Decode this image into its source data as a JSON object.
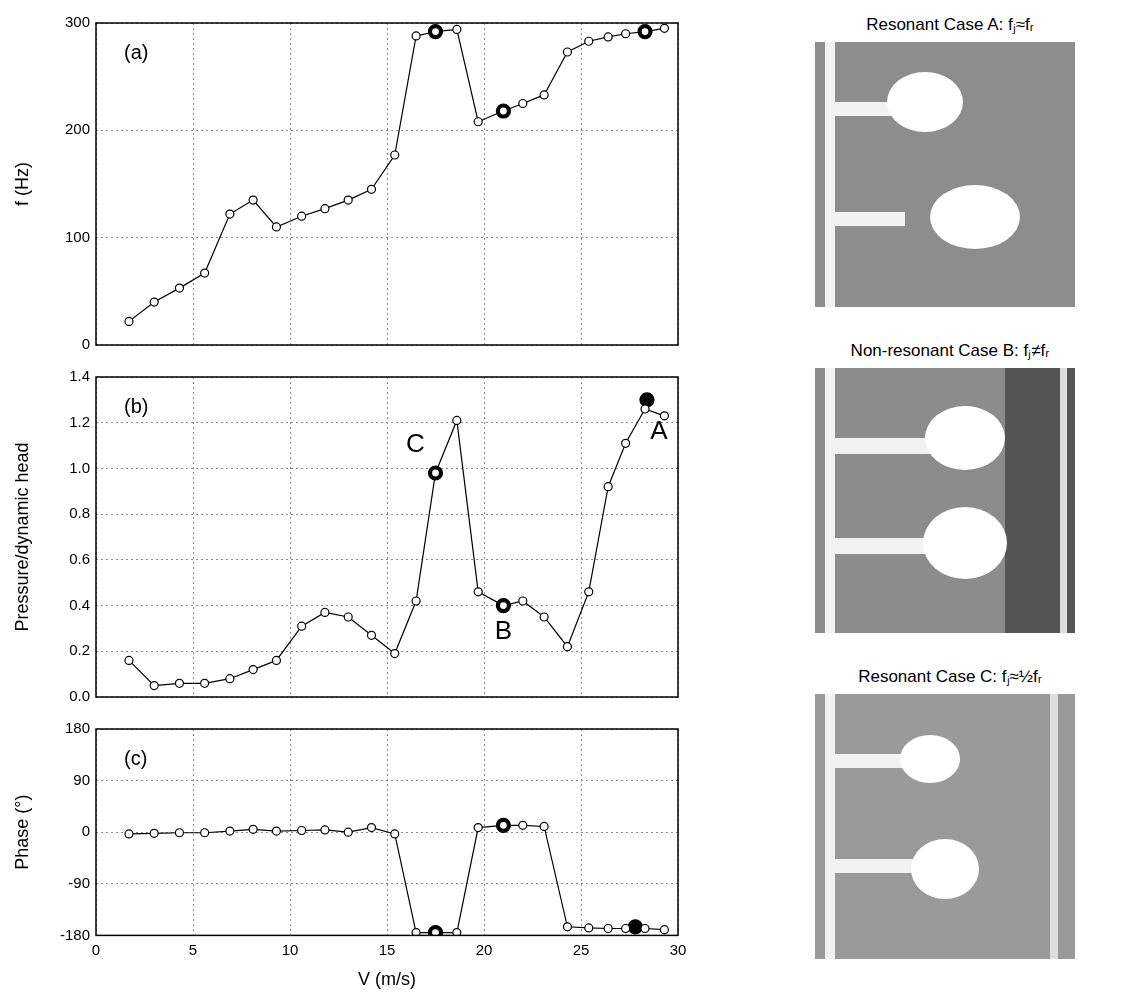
{
  "chart_data": [
    {
      "type": "line",
      "title": "(a)",
      "y_label": "f (Hz)",
      "xlim": [
        0,
        30
      ],
      "xticks": [
        0,
        5,
        10,
        15,
        20,
        25,
        30
      ],
      "ylim": [
        0,
        300
      ],
      "yticks": [
        0,
        100,
        200,
        300
      ],
      "grid": true,
      "tick_labels": "y",
      "series": [
        {
          "color": "#000000",
          "marker": "open_circle",
          "line_style": "solid",
          "x": [
            1.7,
            3.0,
            4.3,
            5.6,
            6.9,
            8.1,
            9.3,
            10.6,
            11.8,
            13.0,
            14.2,
            15.4,
            16.5,
            17.5,
            18.6,
            19.7,
            21.0,
            22.0,
            23.1,
            24.3,
            25.4,
            26.4,
            27.3,
            28.3,
            29.3
          ],
          "values": [
            22,
            40,
            53,
            67,
            122,
            135,
            110,
            120,
            127,
            135,
            145,
            177,
            288,
            292,
            294,
            208,
            218,
            225,
            233,
            273,
            283,
            287,
            290,
            292,
            295
          ]
        },
        {
          "color": "#000000",
          "marker": "filled_circle",
          "line_style": "none",
          "x": [
            17.5,
            21.0,
            28.3
          ],
          "values": [
            292,
            218,
            292
          ]
        }
      ]
    },
    {
      "type": "line",
      "title": "(b)",
      "y_label": "Pressure/dynamic head",
      "xlim": [
        0,
        30
      ],
      "xticks": [
        0,
        5,
        10,
        15,
        20,
        25,
        30
      ],
      "ylim": [
        0,
        1.4
      ],
      "yticks": [
        {
          "value": 0,
          "label": "0.0"
        },
        0.2,
        0.4,
        0.6,
        0.8,
        {
          "value": 1,
          "label": "1.0"
        },
        1.2,
        1.4
      ],
      "grid": true,
      "tick_labels": "y",
      "series": [
        {
          "color": "#000000",
          "marker": "open_circle",
          "line_style": "solid",
          "x": [
            1.7,
            3.0,
            4.3,
            5.6,
            6.9,
            8.1,
            9.3,
            10.6,
            11.8,
            13.0,
            14.2,
            15.4,
            16.5,
            17.5,
            18.6,
            19.7,
            21.0,
            22.0,
            23.1,
            24.3,
            25.4,
            26.4,
            27.3,
            28.3,
            29.3
          ],
          "values": [
            0.16,
            0.05,
            0.06,
            0.06,
            0.08,
            0.12,
            0.16,
            0.31,
            0.37,
            0.35,
            0.27,
            0.19,
            0.42,
            0.98,
            1.21,
            0.46,
            0.4,
            0.42,
            0.35,
            0.22,
            0.46,
            0.92,
            1.11,
            1.26,
            1.23
          ]
        },
        {
          "color": "#000000",
          "marker": "filled_circle",
          "line_style": "none",
          "x": [
            17.5,
            21.0,
            28.4
          ],
          "values": [
            0.98,
            0.4,
            1.3
          ]
        }
      ],
      "annotations": [
        {
          "text": "C",
          "x": 17.5,
          "y": 0.98
        },
        {
          "text": "B",
          "x": 21.0,
          "y": 0.4
        },
        {
          "text": "A",
          "x": 28.4,
          "y": 1.3
        }
      ]
    },
    {
      "type": "line",
      "title": "(c)",
      "x_label": "V (m/s)",
      "y_label": "Phase (°)",
      "xlim": [
        0,
        30
      ],
      "xticks": [
        0,
        5,
        10,
        15,
        20,
        25,
        30
      ],
      "ylim": [
        -180,
        180
      ],
      "yticks": [
        -180,
        -90,
        0,
        90,
        180
      ],
      "grid": true,
      "series": [
        {
          "color": "#000000",
          "marker": "open_circle",
          "line_style": "solid",
          "x": [
            1.7,
            3.0,
            4.3,
            5.6,
            6.9,
            8.1,
            9.3,
            10.6,
            11.8,
            13.0,
            14.2,
            15.4,
            16.5,
            17.5,
            18.6,
            19.7,
            21.0,
            22.0,
            23.1,
            24.3,
            25.4,
            26.4,
            27.3,
            28.3,
            29.3
          ],
          "values": [
            -3,
            -2,
            -1,
            -1,
            2,
            5,
            2,
            3,
            4,
            0,
            8,
            -3,
            -175,
            -175,
            -175,
            8,
            12,
            12,
            10,
            -165,
            -167,
            -168,
            -168,
            -168,
            -170
          ]
        },
        {
          "color": "#000000",
          "marker": "filled_circle",
          "line_style": "none",
          "x": [
            17.5,
            21.0,
            27.8
          ],
          "values": [
            -175,
            12,
            -165
          ]
        }
      ]
    }
  ],
  "images": [
    {
      "caption": "Resonant Case A: fⱼ≈fᵣ"
    },
    {
      "caption": "Non-resonant Case B: fⱼ≠fᵣ"
    },
    {
      "caption": "Resonant Case C: fⱼ≈½fᵣ"
    }
  ]
}
